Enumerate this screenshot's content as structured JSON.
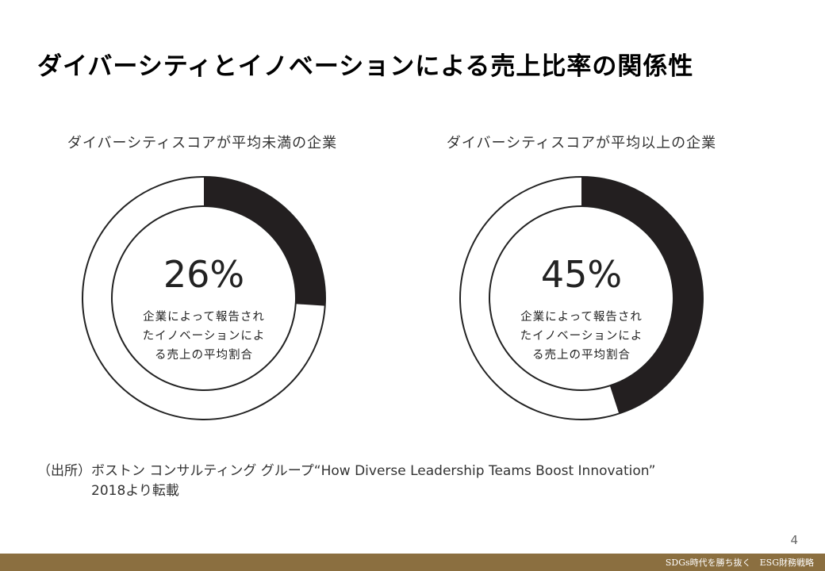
{
  "slide": {
    "title": "ダイバーシティとイノベーションによる売上比率の関係性",
    "page_number": "4"
  },
  "charts": [
    {
      "heading": "ダイバーシティスコアが平均未満の企業",
      "value_text": "26%",
      "value": 26,
      "desc": [
        "企業によって報告され",
        "たイノベーションによ",
        "る売上の平均割合"
      ]
    },
    {
      "heading": "ダイバーシティスコアが平均以上の企業",
      "value_text": "45%",
      "value": 45,
      "desc": [
        "企業によって報告され",
        "たイノベーションによ",
        "る売上の平均割合"
      ]
    }
  ],
  "chart_data": [
    {
      "type": "pie",
      "title": "ダイバーシティスコアが平均未満の企業",
      "values": [
        26
      ],
      "unit": "%",
      "note": "企業によって報告されたイノベーションによる売上の平均割合"
    },
    {
      "type": "pie",
      "title": "ダイバーシティスコアが平均以上の企業",
      "values": [
        45
      ],
      "unit": "%",
      "note": "企業によって報告されたイノベーションによる売上の平均割合"
    }
  ],
  "source": {
    "label": "（出所）",
    "line1": "ボストン コンサルティング グループ“How Diverse Leadership Teams Boost Innovation”",
    "line2": "2018より転載"
  },
  "footer": {
    "text": "SDGs時代を勝ち抜く　ESG財務戦略"
  },
  "colors": {
    "segment": "#231f20",
    "ring_outline": "#222222",
    "footer_bar": "#8b6f40"
  }
}
